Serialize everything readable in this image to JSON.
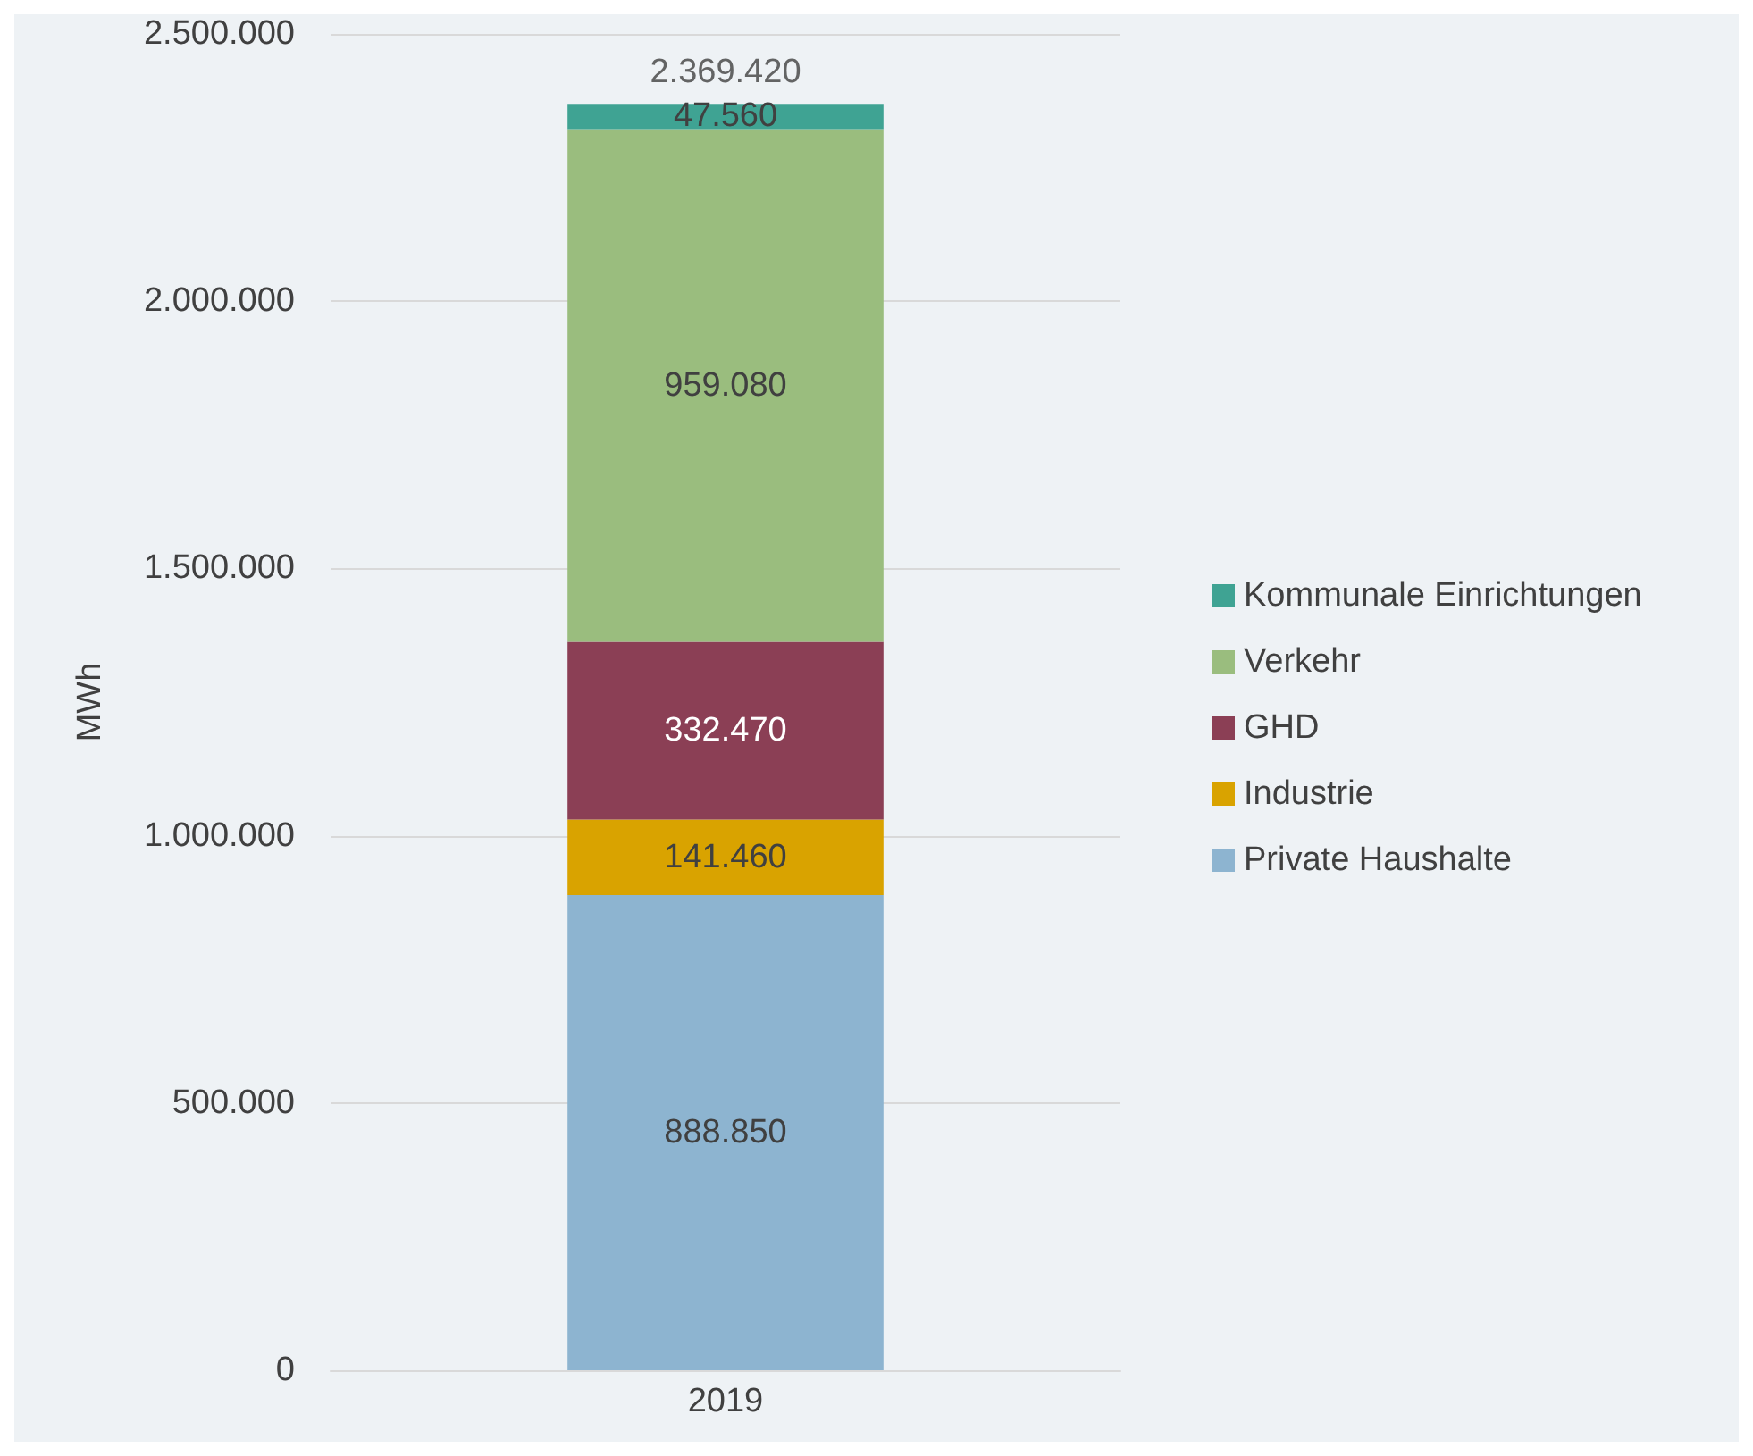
{
  "chart_data": {
    "type": "bar",
    "stacked": true,
    "categories": [
      "2019"
    ],
    "ylabel": "MWh",
    "series": [
      {
        "name": "Private Haushalte",
        "color": "#8db4d0",
        "values": [
          888850
        ],
        "value_labels": [
          "888.850"
        ]
      },
      {
        "name": "Industrie",
        "color": "#d9a300",
        "values": [
          141460
        ],
        "value_labels": [
          "141.460"
        ]
      },
      {
        "name": "GHD",
        "color": "#8b3f55",
        "values": [
          332470
        ],
        "value_labels": [
          "332.470"
        ]
      },
      {
        "name": "Verkehr",
        "color": "#9abd7e",
        "values": [
          959080
        ],
        "value_labels": [
          "959.080"
        ]
      },
      {
        "name": "Kommunale Einrichtungen",
        "color": "#3fa393",
        "values": [
          47560
        ],
        "value_labels": [
          "47.560"
        ]
      }
    ],
    "totals": [
      "2.369.420"
    ],
    "ylim": [
      0,
      2500000
    ],
    "yticks": [
      0,
      {
        "value": 500000,
        "label": "500.000"
      },
      {
        "value": 1000000,
        "label": "1.000.000"
      },
      {
        "value": 1500000,
        "label": "1.500.000"
      },
      {
        "value": 2000000,
        "label": "2.000.000"
      },
      {
        "value": 2500000,
        "label": "2.500.000"
      }
    ],
    "grid": "y",
    "legend": "right"
  }
}
